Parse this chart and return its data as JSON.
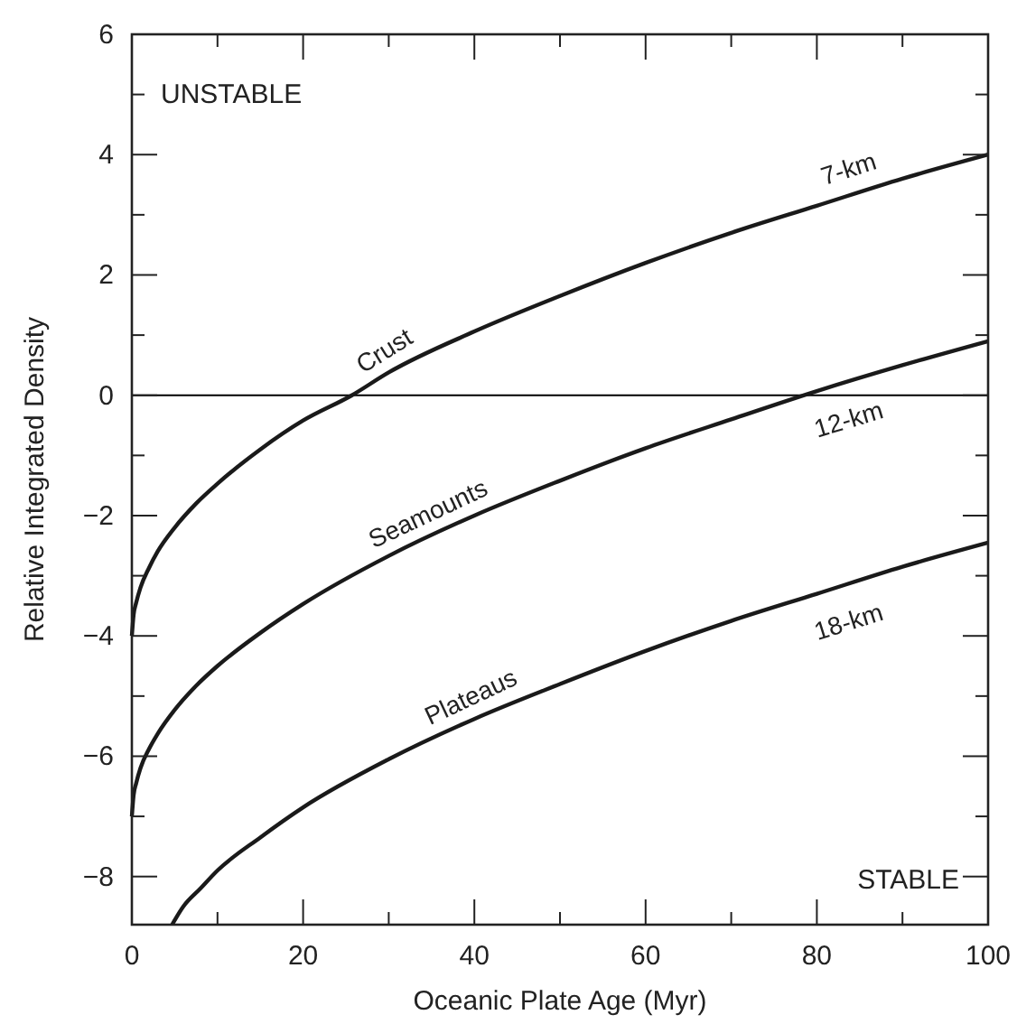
{
  "chart_data": {
    "type": "line",
    "xlabel": "Oceanic Plate Age (Myr)",
    "ylabel": "Relative Integrated Density",
    "xlim": [
      0,
      100
    ],
    "ylim": [
      -8.8,
      6
    ],
    "xticks": [
      0,
      {
        "value": 10,
        "label": null
      },
      20,
      {
        "value": 30,
        "label": null
      },
      40,
      {
        "value": 50,
        "label": null
      },
      60,
      {
        "value": 70,
        "label": null
      },
      80,
      {
        "value": 90,
        "label": null
      },
      100
    ],
    "yticks": [
      {
        "value": -8,
        "label": "−8"
      },
      {
        "value": -7,
        "label": null
      },
      {
        "value": -6,
        "label": "−6"
      },
      {
        "value": -5,
        "label": null
      },
      {
        "value": -4,
        "label": "−4"
      },
      {
        "value": -3,
        "label": null
      },
      {
        "value": -2,
        "label": "−2"
      },
      {
        "value": -1,
        "label": null
      },
      0,
      {
        "value": 1,
        "label": null
      },
      2,
      {
        "value": 3,
        "label": null
      },
      4,
      {
        "value": 5,
        "label": null
      },
      6
    ],
    "grid": false,
    "marker": "none",
    "line_style": "solid",
    "ref_lines": [
      {
        "axis": "y",
        "value": 0,
        "color": "#000000"
      }
    ],
    "series": [
      {
        "name": "Crust",
        "color": "#1a1a1a",
        "x": [
          0,
          0.2,
          0.5,
          1,
          2,
          3,
          5,
          7.5,
          10,
          15,
          20,
          25.7,
          30,
          40,
          50,
          60,
          70,
          80,
          90,
          100
        ],
        "values": [
          -4,
          -3.65,
          -3.45,
          -3.2,
          -2.87,
          -2.6,
          -2.2,
          -1.8,
          -1.47,
          -0.9,
          -0.42,
          0,
          0.38,
          1.06,
          1.65,
          2.2,
          2.7,
          3.15,
          3.6,
          4
        ]
      },
      {
        "name": "Seamounts",
        "color": "#1a1a1a",
        "x": [
          0,
          0.2,
          0.5,
          1,
          2,
          3,
          5,
          7.5,
          10,
          15,
          20,
          30,
          40,
          50,
          60,
          70,
          80,
          90,
          100
        ],
        "values": [
          -7,
          -6.65,
          -6.45,
          -6.2,
          -5.88,
          -5.63,
          -5.23,
          -4.83,
          -4.5,
          -3.95,
          -3.47,
          -2.67,
          -2,
          -1.42,
          -0.88,
          -0.4,
          0.07,
          0.5,
          0.9
        ]
      },
      {
        "name": "Plateaus",
        "color": "#1a1a1a",
        "x": [
          4.7,
          6,
          8,
          10,
          15,
          20,
          30,
          40,
          50,
          60,
          70,
          80,
          90,
          100
        ],
        "values": [
          -8.8,
          -8.5,
          -8.2,
          -7.9,
          -7.35,
          -6.85,
          -6.05,
          -5.38,
          -4.8,
          -4.25,
          -3.75,
          -3.3,
          -2.85,
          -2.45
        ]
      }
    ],
    "annotations": [
      "UNSTABLE",
      "STABLE",
      "7-km",
      "12-km",
      "18-km"
    ]
  }
}
